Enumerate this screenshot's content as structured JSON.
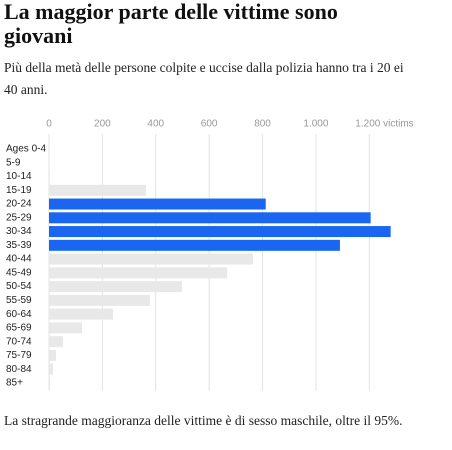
{
  "chart_data": {
    "type": "hbar",
    "title": "La maggior parte delle vittime sono giovani",
    "subtitle": "Più della metà delle persone colpite e uccise dalla polizia hanno tra i 20 ei 40 anni.",
    "note": "La stragrande maggioranza delle vittime è di sesso maschile, oltre il 95%.",
    "categories": [
      "Ages 0-4",
      "5-9",
      "10-14",
      "15-19",
      "20-24",
      "25-29",
      "30-34",
      "35-39",
      "40-44",
      "45-49",
      "50-54",
      "55-59",
      "60-64",
      "65-69",
      "70-74",
      "75-79",
      "80-84",
      "85+"
    ],
    "values": [
      1,
      1,
      3,
      363,
      812,
      1205,
      1280,
      1090,
      764,
      667,
      498,
      378,
      240,
      124,
      52,
      26,
      15,
      4
    ],
    "colors": [
      "#e8e8e8",
      "#e8e8e8",
      "#e8e8e8",
      "#e8e8e8",
      "#1a66f0",
      "#1a66f0",
      "#1a66f0",
      "#1a66f0",
      "#e8e8e8",
      "#e8e8e8",
      "#e8e8e8",
      "#e8e8e8",
      "#e8e8e8",
      "#e8e8e8",
      "#e8e8e8",
      "#e8e8e8",
      "#e8e8e8",
      "#e8e8e8"
    ],
    "xlim": [
      0,
      1300
    ],
    "xticks": [
      0,
      200,
      400,
      600,
      800,
      {
        "value": 1000,
        "label": "1.000"
      },
      {
        "value": 1200,
        "label": "1.200 victims"
      }
    ],
    "grid": true
  }
}
